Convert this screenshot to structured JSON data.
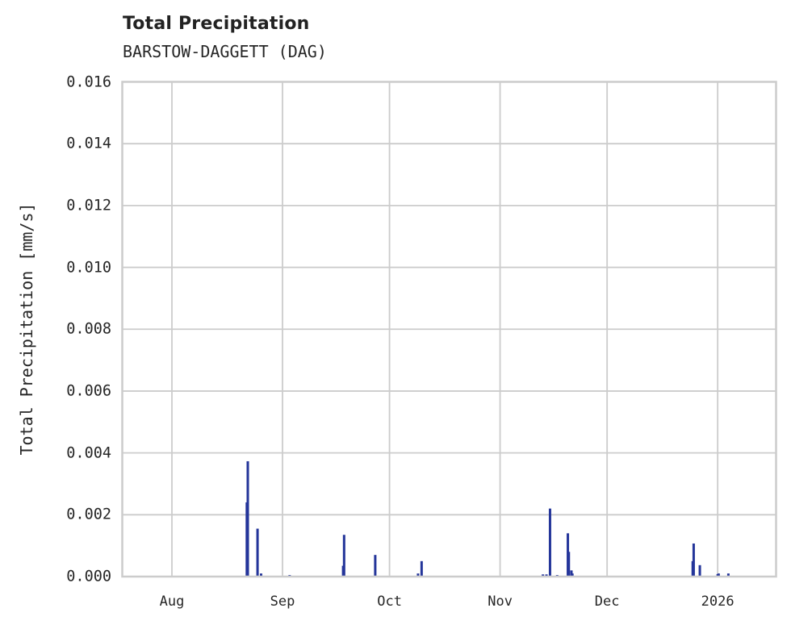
{
  "header": {
    "title": "Total Precipitation",
    "subtitle": "BARSTOW-DAGGETT (DAG)"
  },
  "colors": {
    "series": "#24359a",
    "grid": "#cccccc",
    "frame": "#cccccc",
    "text": "#262626"
  },
  "axes": {
    "ylabel": "Total Precipitation [mm/s]",
    "yticks": [
      "0.000",
      "0.002",
      "0.004",
      "0.006",
      "0.008",
      "0.010",
      "0.012",
      "0.014",
      "0.016"
    ],
    "xticks": [
      "Aug",
      "Sep",
      "Oct",
      "Nov",
      "Dec",
      "2026"
    ]
  },
  "chart_data": {
    "type": "bar",
    "title": "Total Precipitation",
    "subtitle": "BARSTOW-DAGGETT (DAG)",
    "xlabel": "",
    "ylabel": "Total Precipitation [mm/s]",
    "ylim": [
      0,
      0.016
    ],
    "xlim": [
      "2025-07-18",
      "2026-01-15"
    ],
    "grid": true,
    "legend": null,
    "x_tick_labels": [
      "Aug",
      "Sep",
      "Oct",
      "Nov",
      "Dec",
      "2026"
    ],
    "x_tick_dates": [
      "2025-08-01",
      "2025-09-01",
      "2025-10-01",
      "2025-11-01",
      "2025-12-01",
      "2026-01-01"
    ],
    "y_tick_labels": [
      "0.000",
      "0.002",
      "0.004",
      "0.006",
      "0.008",
      "0.010",
      "0.012",
      "0.014",
      "0.016"
    ],
    "series": [
      {
        "name": "Total Precipitation",
        "color": "#24359a",
        "points": [
          {
            "date": "2025-08-22",
            "value": 0.0024
          },
          {
            "date": "2025-08-22",
            "value": 0.00373
          },
          {
            "date": "2025-08-25",
            "value": 0.00155
          },
          {
            "date": "2025-08-26",
            "value": 0.0001
          },
          {
            "date": "2025-09-03",
            "value": 5e-05
          },
          {
            "date": "2025-09-18",
            "value": 0.00035
          },
          {
            "date": "2025-09-18",
            "value": 0.00135
          },
          {
            "date": "2025-09-27",
            "value": 0.0007
          },
          {
            "date": "2025-10-09",
            "value": 0.0001
          },
          {
            "date": "2025-10-10",
            "value": 0.0005
          },
          {
            "date": "2025-11-13",
            "value": 7e-05
          },
          {
            "date": "2025-11-14",
            "value": 7e-05
          },
          {
            "date": "2025-11-15",
            "value": 0.0022
          },
          {
            "date": "2025-11-17",
            "value": 5e-05
          },
          {
            "date": "2025-11-20",
            "value": 0.0014
          },
          {
            "date": "2025-11-20",
            "value": 0.0008
          },
          {
            "date": "2025-11-21",
            "value": 0.0002
          },
          {
            "date": "2025-11-21",
            "value": 0.0001
          },
          {
            "date": "2025-12-25",
            "value": 0.0005
          },
          {
            "date": "2025-12-25",
            "value": 0.00107
          },
          {
            "date": "2025-12-27",
            "value": 0.00037
          },
          {
            "date": "2026-01-01",
            "value": 8e-05
          },
          {
            "date": "2026-01-01",
            "value": 0.0001
          },
          {
            "date": "2026-01-04",
            "value": 0.0001
          }
        ]
      }
    ]
  }
}
